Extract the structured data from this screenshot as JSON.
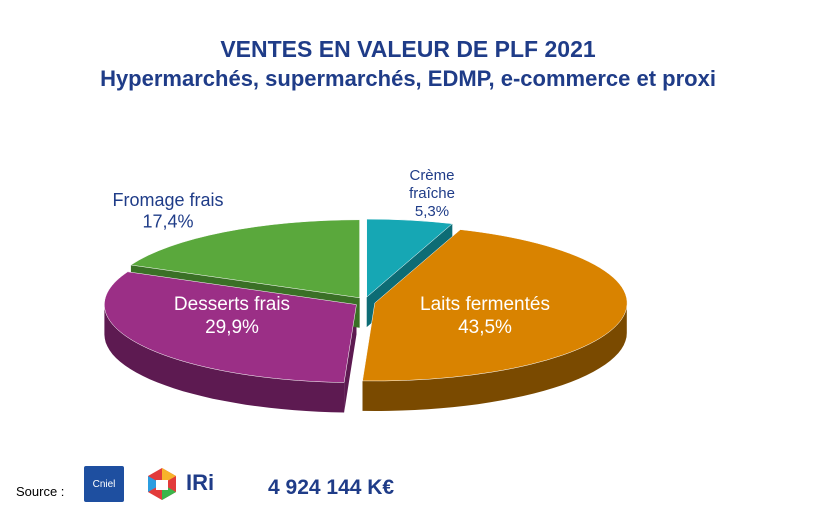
{
  "header": {
    "title": "VENTES EN VALEUR DE PLF 2021",
    "subtitle": "Hypermarchés, supermarchés, EDMP, e-commerce et proxi"
  },
  "chart_data": {
    "type": "pie",
    "style": "3d-exploded",
    "slices": [
      {
        "name": "Crème fraîche",
        "label_lines": [
          "Crème",
          "fraîche"
        ],
        "value_label": "5,3%",
        "value": 5.3,
        "color": "#16a7b4",
        "side_color": "#0d6c75",
        "label_color": "#1f3c88"
      },
      {
        "name": "Laits fermentés",
        "label_lines": [
          "Laits fermentés"
        ],
        "value_label": "43,5%",
        "value": 43.5,
        "color": "#d98300",
        "side_color": "#7a4a00",
        "label_color": "#ffffff"
      },
      {
        "name": "Desserts frais",
        "label_lines": [
          "Desserts frais"
        ],
        "value_label": "29,9%",
        "value": 29.9,
        "color": "#9b2f86",
        "side_color": "#5d1a51",
        "label_color": "#ffffff"
      },
      {
        "name": "Fromage frais",
        "label_lines": [
          "Fromage frais"
        ],
        "value_label": "17,4%",
        "value": 17.4,
        "color": "#5aa83c",
        "side_color": "#3a7026",
        "label_color": "#1f3c88"
      }
    ]
  },
  "footer": {
    "source_label": "Source :",
    "cniel_logo_text": "Cniel",
    "iri_logo_text": "IRi",
    "total": "4 924 144 K€"
  }
}
